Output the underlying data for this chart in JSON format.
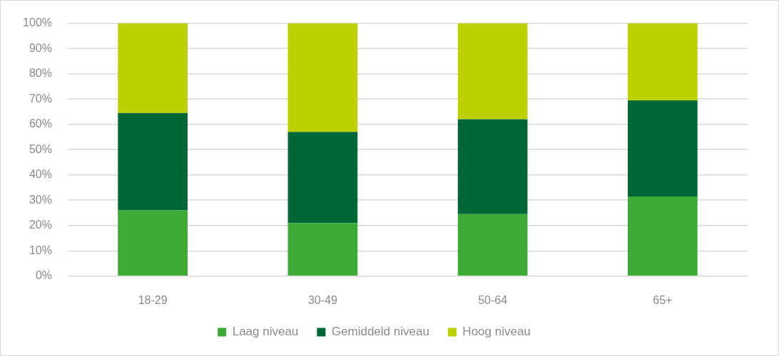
{
  "chart_data": {
    "type": "bar",
    "stacked": true,
    "categories": [
      "18-29",
      "30-49",
      "50-64",
      "65+"
    ],
    "series": [
      {
        "name": "Laag niveau",
        "color": "#3caa35",
        "values": [
          26,
          21,
          24.5,
          31.5
        ]
      },
      {
        "name": "Gemiddeld niveau",
        "color": "#006837",
        "values": [
          38.5,
          36,
          37.5,
          38
        ]
      },
      {
        "name": "Hoog niveau",
        "color": "#bdd000",
        "values": [
          35.5,
          43,
          38,
          30.5
        ]
      }
    ],
    "ylim": [
      0,
      100
    ],
    "yticks": [
      {
        "value": 0,
        "label": "0%"
      },
      {
        "value": 10,
        "label": "10%"
      },
      {
        "value": 20,
        "label": "20%"
      },
      {
        "value": 30,
        "label": "30%"
      },
      {
        "value": 40,
        "label": "40%"
      },
      {
        "value": 50,
        "label": "50%"
      },
      {
        "value": 60,
        "label": "60%"
      },
      {
        "value": 70,
        "label": "70%"
      },
      {
        "value": 80,
        "label": "80%"
      },
      {
        "value": 90,
        "label": "90%"
      },
      {
        "value": 100,
        "label": "100%"
      }
    ],
    "grid": "y",
    "legend": "bottom"
  }
}
